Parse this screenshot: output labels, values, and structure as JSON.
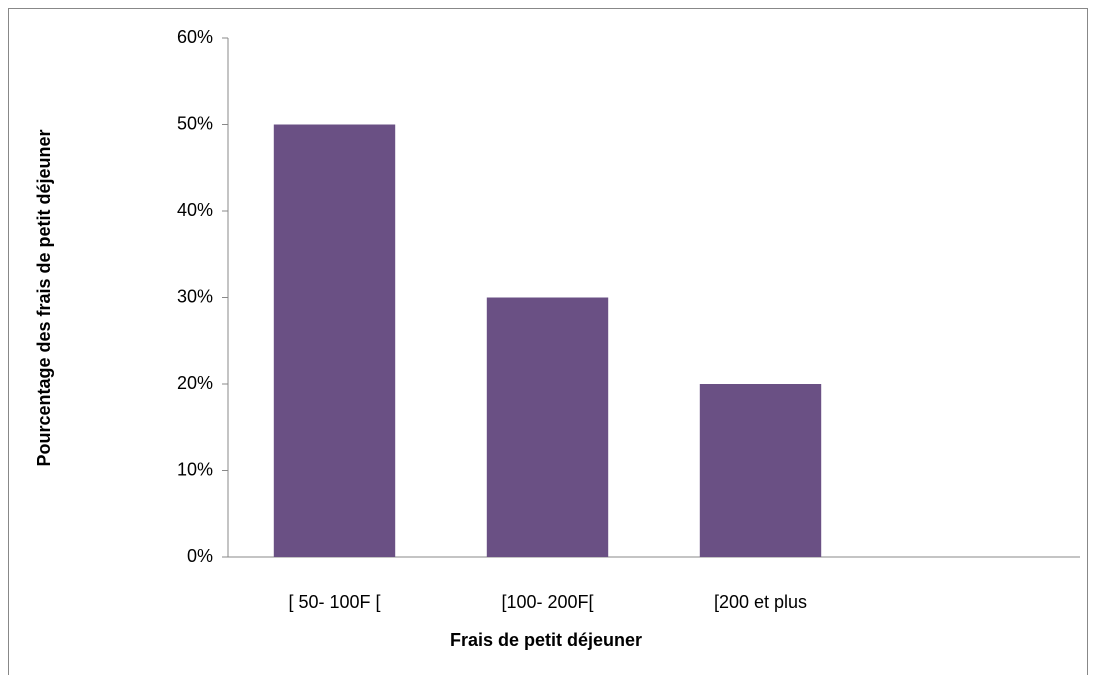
{
  "chart_data": {
    "type": "bar",
    "categories": [
      "[ 50- 100F [",
      "[100- 200F[",
      "[200 et plus",
      null
    ],
    "values": [
      50,
      30,
      20,
      null
    ],
    "color": "#6a5084",
    "xlabel": "Frais de petit déjeuner",
    "ylabel": "Pourcentage des frais de petit déjeuner",
    "ylim": [
      0,
      60
    ],
    "yticks": [
      {
        "value": 0,
        "label": "0%"
      },
      {
        "value": 10,
        "label": "10%"
      },
      {
        "value": 20,
        "label": "20%"
      },
      {
        "value": 30,
        "label": "30%"
      },
      {
        "value": 40,
        "label": "40%"
      },
      {
        "value": 50,
        "label": "50%"
      },
      {
        "value": 60,
        "label": "60%"
      }
    ],
    "grid": false
  }
}
